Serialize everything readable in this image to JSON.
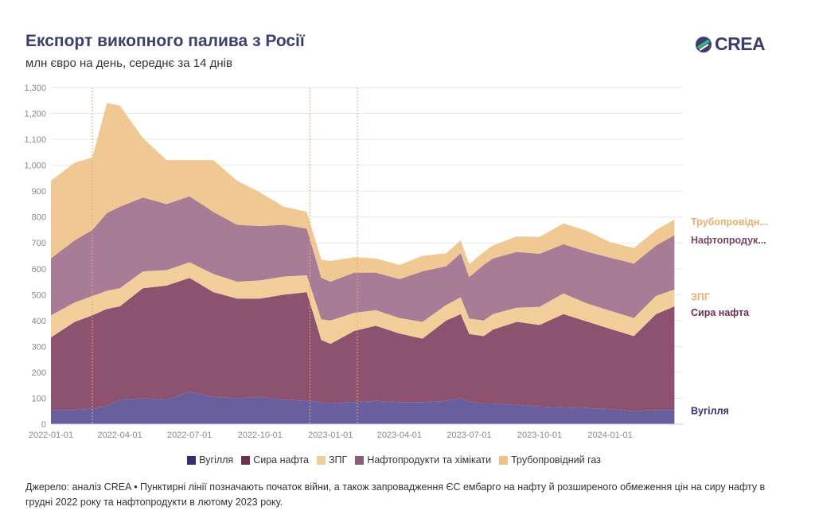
{
  "header": {
    "title": "Експорт викопного палива з Росії",
    "subtitle": "млн євро на день, середнє за 14 днів",
    "logo_text": "CREA"
  },
  "source_note": "Джерело: аналіз CREA • Пунктирні лінії позначають початок війни, а також запровадження ЄС ембарго на нафту й розширеного обмеження цін на сиру нафту в грудні 2022 року та нафтопродукти в лютому 2023 року.",
  "colors": {
    "coal": "#6a5f9e",
    "crude": "#8c5270",
    "lng": "#f2ce9a",
    "products": "#a87c97",
    "pipeline": "#f0c894",
    "grid": "#e8e8e8",
    "vline": "#e8a66e"
  },
  "chart_data": {
    "type": "area",
    "stacked": true,
    "title": "Експорт викопного палива з Росії",
    "subtitle": "млн євро на день, середнє за 14 днів",
    "ylim": [
      0,
      1300
    ],
    "grid": true,
    "legend_position": "bottom",
    "y_ticks": [
      "0",
      "100",
      "200",
      "300",
      "400",
      "500",
      "600",
      "700",
      "800",
      "900",
      "1,000",
      "1,100",
      "1,200",
      "1,300"
    ],
    "x_ticks": [
      "2022-01-01",
      "2022-04-01",
      "2022-07-01",
      "2022-10-01",
      "2023-01-01",
      "2023-04-01",
      "2023-07-01",
      "2023-10-01",
      "2024-01-01"
    ],
    "vlines": [
      "2022-02-24",
      "2022-12-05",
      "2023-02-05"
    ],
    "x": [
      "2022-01-01",
      "2022-02-01",
      "2022-02-24",
      "2022-03-15",
      "2022-04-01",
      "2022-05-01",
      "2022-06-01",
      "2022-07-01",
      "2022-08-01",
      "2022-09-01",
      "2022-10-01",
      "2022-11-01",
      "2022-12-01",
      "2022-12-20",
      "2023-01-01",
      "2023-02-01",
      "2023-03-01",
      "2023-04-01",
      "2023-05-01",
      "2023-06-01",
      "2023-06-20",
      "2023-07-01",
      "2023-07-20",
      "2023-08-01",
      "2023-09-01",
      "2023-10-01",
      "2023-11-01",
      "2023-12-01",
      "2024-01-01",
      "2024-02-01",
      "2024-03-01",
      "2024-03-25"
    ],
    "series": [
      {
        "name": "Вугілля",
        "label": "Вугілля",
        "color": "#6a5f9e",
        "values": [
          55,
          55,
          60,
          70,
          95,
          100,
          95,
          125,
          105,
          100,
          105,
          95,
          90,
          85,
          80,
          85,
          90,
          85,
          85,
          90,
          100,
          88,
          80,
          80,
          75,
          68,
          65,
          62,
          58,
          50,
          55,
          55
        ]
      },
      {
        "name": "Сира нафта",
        "label": "Сира нафта",
        "color": "#8c5270",
        "values": [
          280,
          340,
          360,
          375,
          360,
          425,
          440,
          440,
          405,
          385,
          380,
          405,
          420,
          240,
          230,
          275,
          290,
          265,
          245,
          310,
          325,
          260,
          260,
          285,
          320,
          315,
          360,
          335,
          310,
          290,
          370,
          400
        ]
      },
      {
        "name": "ЗПГ",
        "label": "ЗПГ",
        "color": "#f2ce9a",
        "values": [
          85,
          75,
          75,
          70,
          70,
          65,
          60,
          60,
          70,
          65,
          70,
          70,
          65,
          80,
          90,
          70,
          60,
          60,
          65,
          60,
          65,
          60,
          60,
          60,
          55,
          70,
          80,
          70,
          70,
          70,
          70,
          65
        ]
      },
      {
        "name": "Нафтопродукти та хімікати",
        "label": "Нафтопродук...",
        "color": "#a87c97",
        "values": [
          220,
          240,
          255,
          300,
          315,
          285,
          255,
          255,
          240,
          220,
          210,
          200,
          180,
          160,
          150,
          155,
          145,
          150,
          195,
          150,
          170,
          160,
          215,
          215,
          215,
          205,
          190,
          200,
          205,
          210,
          195,
          210
        ]
      },
      {
        "name": "Трубопровідний газ",
        "label": "Трубопровідн...",
        "color": "#f0c894",
        "values": [
          300,
          300,
          280,
          425,
          390,
          230,
          170,
          140,
          200,
          170,
          130,
          70,
          65,
          70,
          80,
          60,
          55,
          55,
          60,
          50,
          50,
          50,
          50,
          50,
          60,
          65,
          80,
          80,
          60,
          60,
          60,
          60
        ]
      }
    ]
  },
  "legend": [
    {
      "label": "Вугілля",
      "color": "#3b2a7a"
    },
    {
      "label": "Сира нафта",
      "color": "#6e2f55"
    },
    {
      "label": "ЗПГ",
      "color": "#f2ce9a"
    },
    {
      "label": "Нафтопродукти та хімікати",
      "color": "#8c5c7e"
    },
    {
      "label": "Трубопровідний газ",
      "color": "#eec08a"
    }
  ],
  "end_labels": [
    {
      "text": "Трубопровідн...",
      "color": "#e8b070",
      "value": 780
    },
    {
      "text": "Нафтопродук...",
      "color": "#7a4466",
      "value": 710
    },
    {
      "text": "ЗПГ",
      "color": "#e8b070",
      "value": 490
    },
    {
      "text": "Сира нафта",
      "color": "#6e2f55",
      "value": 430
    },
    {
      "text": "Вугілля",
      "color": "#3b2a7a",
      "value": 50
    }
  ]
}
